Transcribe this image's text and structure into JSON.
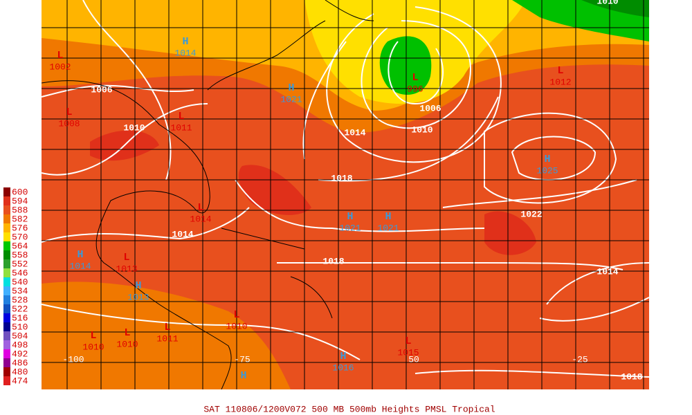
{
  "legend": {
    "levels": [
      {
        "label": "600",
        "color": "#8b0000"
      },
      {
        "label": "594",
        "color": "#e0301a"
      },
      {
        "label": "588",
        "color": "#e8501e"
      },
      {
        "label": "582",
        "color": "#f07800"
      },
      {
        "label": "576",
        "color": "#ffb400"
      },
      {
        "label": "570",
        "color": "#ffe000"
      },
      {
        "label": "564",
        "color": "#00c800"
      },
      {
        "label": "558",
        "color": "#008c00"
      },
      {
        "label": "552",
        "color": "#2ca02c"
      },
      {
        "label": "546",
        "color": "#90e040"
      },
      {
        "label": "540",
        "color": "#00e0e0"
      },
      {
        "label": "534",
        "color": "#40b0ff"
      },
      {
        "label": "528",
        "color": "#2080e0"
      },
      {
        "label": "522",
        "color": "#1050c0"
      },
      {
        "label": "516",
        "color": "#0000e0"
      },
      {
        "label": "510",
        "color": "#000090"
      },
      {
        "label": "504",
        "color": "#7050c0"
      },
      {
        "label": "498",
        "color": "#a060e0"
      },
      {
        "label": "492",
        "color": "#e000e0"
      },
      {
        "label": "486",
        "color": "#900090"
      },
      {
        "label": "480",
        "color": "#a00000"
      },
      {
        "label": "474",
        "color": "#e02020"
      }
    ]
  },
  "pressure_centers": [
    {
      "symbol": "L",
      "value": "1002"
    },
    {
      "symbol": "H",
      "value": "1014"
    },
    {
      "symbol": "H",
      "value": "1021"
    },
    {
      "symbol": "L",
      "value": "996"
    },
    {
      "symbol": "L",
      "value": "1012"
    },
    {
      "symbol": "L",
      "value": "1008"
    },
    {
      "symbol": "L",
      "value": "1011"
    },
    {
      "symbol": "H",
      "value": "1025"
    },
    {
      "symbol": "L",
      "value": "1014"
    },
    {
      "symbol": "H",
      "value": "1021"
    },
    {
      "symbol": "H",
      "value": "1021"
    },
    {
      "symbol": "H",
      "value": "1014"
    },
    {
      "symbol": "L",
      "value": "1013"
    },
    {
      "symbol": "H",
      "value": "1013"
    },
    {
      "symbol": "L",
      "value": "1010"
    },
    {
      "symbol": "L",
      "value": "1010"
    },
    {
      "symbol": "L",
      "value": "1011"
    },
    {
      "symbol": "L",
      "value": "1010"
    },
    {
      "symbol": "L",
      "value": "1015"
    },
    {
      "symbol": "H",
      "value": "1016"
    },
    {
      "symbol": "H"
    }
  ],
  "isobar_labels": [
    "1006",
    "1010",
    "1014",
    "1014",
    "1006",
    "1010",
    "1018",
    "1022",
    "1018",
    "1014",
    "1018",
    "1010"
  ],
  "longitude_labels": [
    "-100",
    "-75",
    "50",
    "-25"
  ],
  "footer": "SAT 110806/1200V072  500 MB 500mb Heights PMSL Tropical"
}
